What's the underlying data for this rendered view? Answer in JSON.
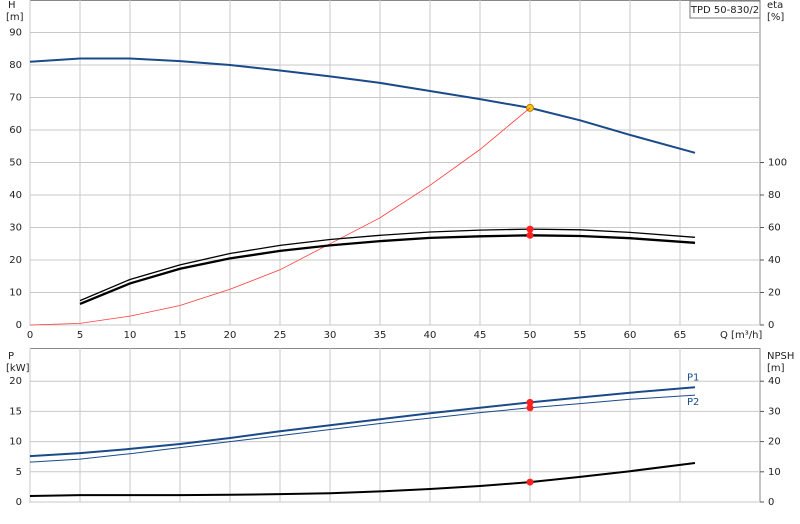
{
  "chart_data": [
    {
      "type": "line",
      "title": "TPD 50-830/2",
      "ylabel": "H",
      "yunit": "[m]",
      "y2label": "eta",
      "y2unit": "[%]",
      "xlabel": "Q [m³/h]",
      "x": [
        0,
        5,
        10,
        15,
        20,
        25,
        30,
        35,
        40,
        45,
        50,
        55,
        60,
        66.5
      ],
      "xlim": [
        0,
        73
      ],
      "xticks": [
        0,
        5,
        10,
        15,
        20,
        25,
        30,
        35,
        40,
        45,
        50,
        55,
        60,
        65
      ],
      "show_xtick_labels": true,
      "ylim": [
        0,
        100
      ],
      "yticks": [
        0,
        10,
        20,
        30,
        40,
        50,
        60,
        70,
        80,
        90
      ],
      "y2lim": [
        0,
        200
      ],
      "y2ticks": [
        0,
        20,
        40,
        60,
        80,
        100
      ],
      "grid": true,
      "duty_x": 50,
      "series": [
        {
          "color": "#1a4a8a",
          "width": 2,
          "marker_color": "#f5c518",
          "values": [
            81,
            82,
            82,
            81.2,
            80,
            78.3,
            76.5,
            74.5,
            72,
            69.5,
            66.8,
            63,
            58.5,
            53
          ]
        },
        {
          "color": "#ff3b3b",
          "width": 0.8,
          "axis": "y2",
          "values": [
            0,
            1,
            5.5,
            12,
            22,
            34,
            50,
            66,
            86,
            108,
            133.6,
            null,
            null,
            null
          ]
        },
        {
          "color": "#000000",
          "width": 1.3,
          "axis": "y2",
          "marker_color": "#ff2020",
          "values": [
            null,
            15,
            28,
            37,
            44,
            49,
            52.6,
            55.2,
            57.2,
            58.4,
            59,
            58.6,
            57,
            54
          ]
        },
        {
          "color": "#000000",
          "width": 2.3,
          "axis": "y2",
          "marker_color": "#ff2020",
          "values": [
            null,
            13,
            25.6,
            34.6,
            41,
            45.6,
            49,
            51.6,
            53.6,
            54.6,
            55.2,
            54.8,
            53.4,
            50.6
          ]
        }
      ]
    },
    {
      "type": "line",
      "ylabel": "P",
      "yunit": "[kW]",
      "y2label": "NPSH",
      "y2unit": "[m]",
      "x": [
        0,
        5,
        10,
        15,
        20,
        25,
        30,
        35,
        40,
        45,
        50,
        55,
        60,
        66.5
      ],
      "xlim": [
        0,
        73
      ],
      "xticks": [
        0,
        5,
        10,
        15,
        20,
        25,
        30,
        35,
        40,
        45,
        50,
        55,
        60,
        65
      ],
      "show_xtick_labels": false,
      "ylim": [
        0,
        25.5
      ],
      "yticks": [
        0,
        5,
        10,
        15,
        20
      ],
      "y2lim": [
        0,
        51
      ],
      "y2ticks": [
        0,
        10,
        20,
        30,
        40
      ],
      "grid": true,
      "duty_x": 50,
      "series": [
        {
          "name": "P1",
          "color": "#1a4a8a",
          "width": 2,
          "marker_color": "#ff2020",
          "values": [
            7.6,
            8.1,
            8.8,
            9.6,
            10.6,
            11.7,
            12.7,
            13.7,
            14.7,
            15.6,
            16.5,
            17.3,
            18.1,
            19
          ]
        },
        {
          "name": "P2",
          "color": "#1a4a8a",
          "width": 1,
          "marker_color": "#ff2020",
          "values": [
            6.6,
            7.1,
            8,
            9,
            10,
            11,
            12,
            13,
            13.9,
            14.8,
            15.6,
            16.3,
            17,
            17.7
          ]
        },
        {
          "color": "#000000",
          "width": 2,
          "axis": "y2",
          "marker_color": "#ff2020",
          "values": [
            2,
            2.3,
            2.3,
            2.3,
            2.4,
            2.6,
            2.9,
            3.5,
            4.3,
            5.3,
            6.6,
            8.3,
            10.2,
            12.9
          ]
        }
      ]
    }
  ]
}
